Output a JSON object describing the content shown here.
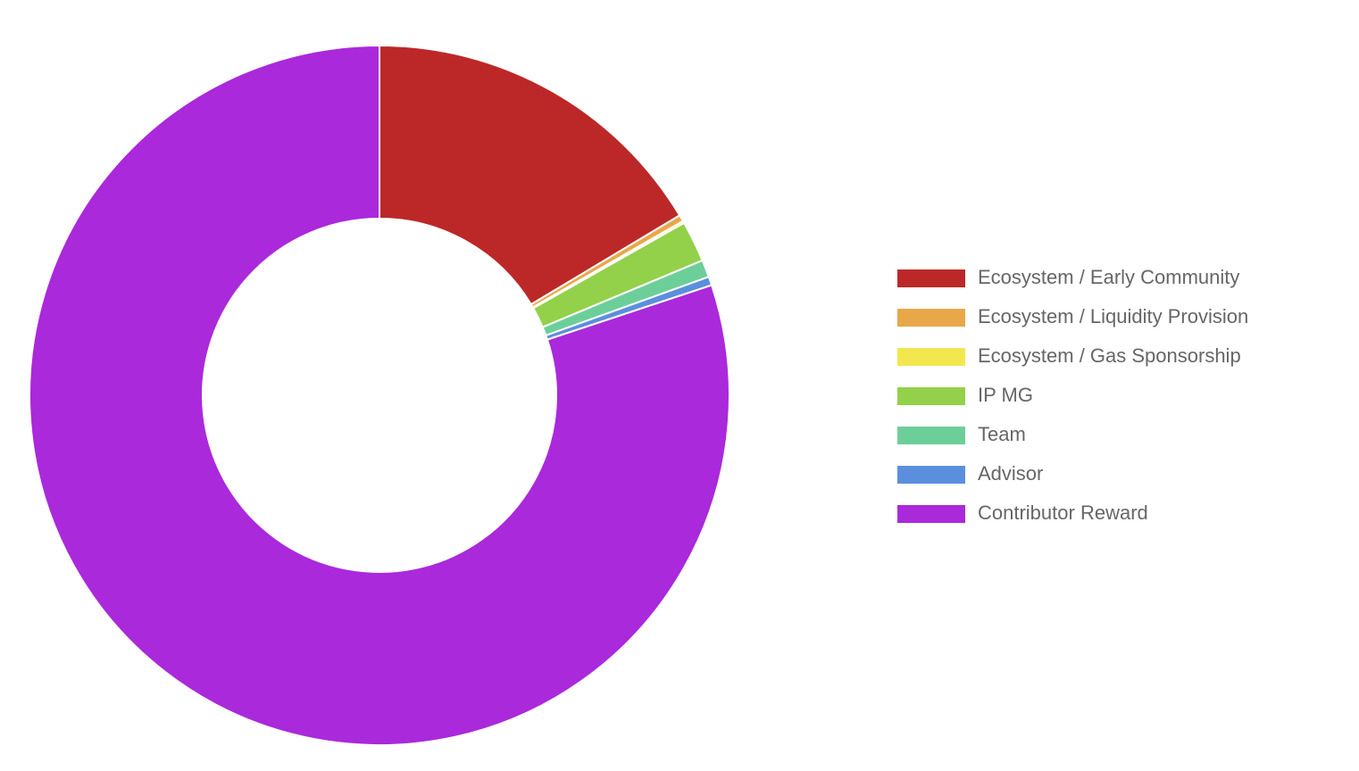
{
  "chart_data": {
    "type": "doughnut",
    "categories": [
      "Ecosystem / Early Community",
      "Ecosystem / Liquidity Provision",
      "Ecosystem / Gas Sponsorship",
      "IP MG",
      "Team",
      "Advisor",
      "Contributor Reward"
    ],
    "values": [
      16.4,
      0.3,
      0.1,
      1.9,
      0.8,
      0.4,
      80.1
    ],
    "colors": [
      "#bc2828",
      "#e8a84a",
      "#f2e74e",
      "#93d14a",
      "#6ccf9a",
      "#5b8fde",
      "#aa29db"
    ],
    "legend": "right"
  }
}
